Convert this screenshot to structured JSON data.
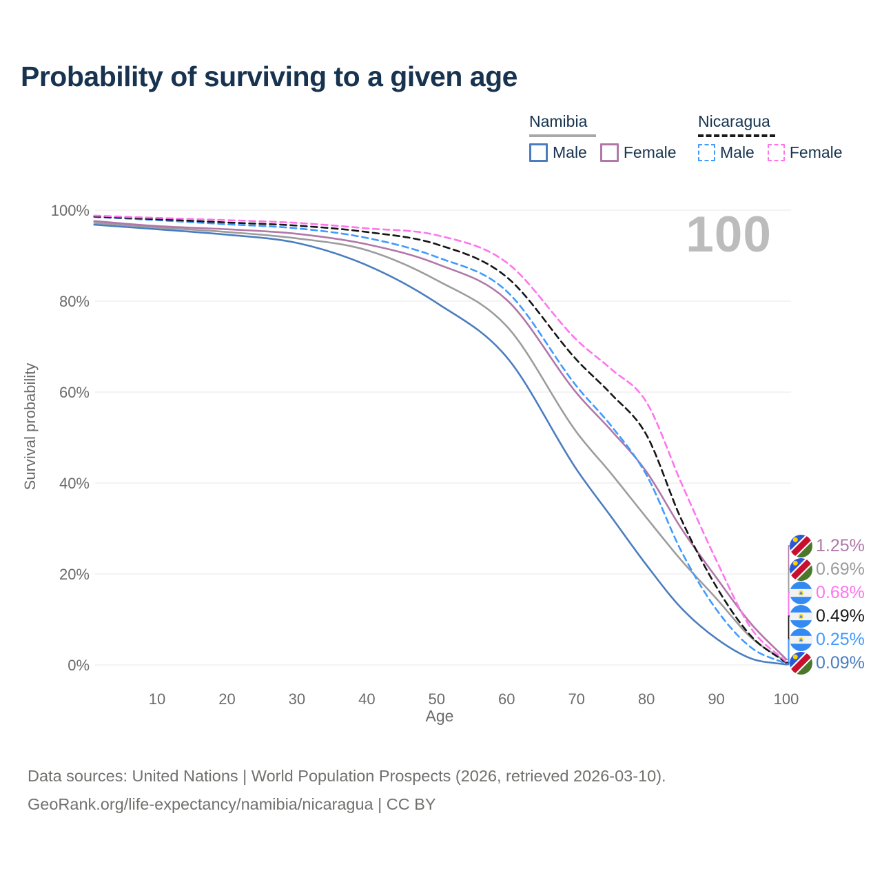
{
  "title": "Probability of surviving to a given age",
  "watermark": "100",
  "legend": {
    "groups": [
      {
        "name": "Namibia",
        "line_style": "solid",
        "line_color": "#a8a8a8",
        "items": [
          {
            "label": "Male",
            "color": "#4a7dbf",
            "dashed": false
          },
          {
            "label": "Female",
            "color": "#b077a8",
            "dashed": false
          }
        ]
      },
      {
        "name": "Nicaragua",
        "line_style": "dashed",
        "line_color": "#1a1a1a",
        "items": [
          {
            "label": "Male",
            "color": "#3f9bff",
            "dashed": true
          },
          {
            "label": "Female",
            "color": "#ff74ee",
            "dashed": true
          }
        ]
      }
    ]
  },
  "yaxis": {
    "title": "Survival probability",
    "tick_labels": [
      "0%",
      "20%",
      "40%",
      "60%",
      "80%",
      "100%"
    ],
    "tick_values": [
      0,
      20,
      40,
      60,
      80,
      100
    ]
  },
  "xaxis": {
    "title": "Age",
    "tick_values": [
      10,
      20,
      30,
      40,
      50,
      60,
      70,
      80,
      90,
      100
    ]
  },
  "footer": {
    "line1": "Data sources: United Nations | World Population Prospects (2026, retrieved 2026-03-10).",
    "line2": "GeoRank.org/life-expectancy/namibia/nicaragua | CC BY"
  },
  "chart_data": {
    "type": "line",
    "title": "Probability of surviving to a given age",
    "xlabel": "Age",
    "ylabel": "Survival probability",
    "xlim": [
      0,
      100
    ],
    "ylim": [
      0,
      100
    ],
    "grid": "horizontal",
    "legend_position": "top-right",
    "x": [
      1,
      10,
      20,
      30,
      40,
      50,
      60,
      70,
      75,
      80,
      85,
      90,
      95,
      100
    ],
    "series": [
      {
        "name": "namibia-male",
        "country": "Namibia",
        "sex": "Male",
        "color": "#4a7dbf",
        "dashed": false,
        "values": [
          96.8,
          95.8,
          94.6,
          92.8,
          87.9,
          79.6,
          67.7,
          43.0,
          32.5,
          22.0,
          12.5,
          5.8,
          1.4,
          0.09
        ]
      },
      {
        "name": "namibia-all",
        "country": "Namibia",
        "sex": "All",
        "color": "#9c9c9c",
        "dashed": false,
        "values": [
          97.2,
          96.2,
          95.2,
          93.8,
          91.2,
          84.6,
          74.5,
          51.2,
          42.0,
          32.4,
          23.0,
          14.6,
          6.0,
          0.69
        ]
      },
      {
        "name": "namibia-female",
        "country": "Namibia",
        "sex": "Female",
        "color": "#b077a8",
        "dashed": false,
        "values": [
          97.6,
          96.5,
          95.8,
          94.8,
          92.5,
          88.2,
          80.3,
          59.8,
          51.5,
          42.5,
          30.0,
          19.2,
          9.0,
          1.25
        ]
      },
      {
        "name": "nicaragua-male",
        "country": "Nicaragua",
        "sex": "Male",
        "color": "#3f9bff",
        "dashed": true,
        "values": [
          98.5,
          97.8,
          96.9,
          96.0,
          93.9,
          89.7,
          82.2,
          61.3,
          52.5,
          41.8,
          25.0,
          12.2,
          3.8,
          0.25
        ]
      },
      {
        "name": "nicaragua-all",
        "country": "Nicaragua",
        "sex": "All",
        "color": "#151515",
        "dashed": true,
        "values": [
          98.6,
          98.0,
          97.3,
          96.6,
          95.2,
          92.5,
          85.3,
          67.1,
          59.5,
          50.6,
          32.0,
          17.2,
          6.3,
          0.49
        ]
      },
      {
        "name": "nicaragua-female",
        "country": "Nicaragua",
        "sex": "Female",
        "color": "#ff74ee",
        "dashed": true,
        "values": [
          98.8,
          98.3,
          97.8,
          97.2,
          96.0,
          94.5,
          88.5,
          71.5,
          65.0,
          57.8,
          40.0,
          23.0,
          8.0,
          0.68
        ]
      }
    ],
    "end_labels": [
      {
        "text": "1.25%",
        "flag": "namibia",
        "series": "namibia-female",
        "color": "#b077a8"
      },
      {
        "text": "0.69%",
        "flag": "namibia",
        "series": "namibia-all",
        "color": "#9c9c9c"
      },
      {
        "text": "0.68%",
        "flag": "nicaragua",
        "series": "nicaragua-female",
        "color": "#ff74ee"
      },
      {
        "text": "0.49%",
        "flag": "nicaragua",
        "series": "nicaragua-all",
        "color": "#1a1a1a"
      },
      {
        "text": "0.25%",
        "flag": "nicaragua",
        "series": "nicaragua-male",
        "color": "#3f9bff"
      },
      {
        "text": "0.09%",
        "flag": "namibia",
        "series": "namibia-male",
        "color": "#4a7dbf"
      }
    ]
  }
}
